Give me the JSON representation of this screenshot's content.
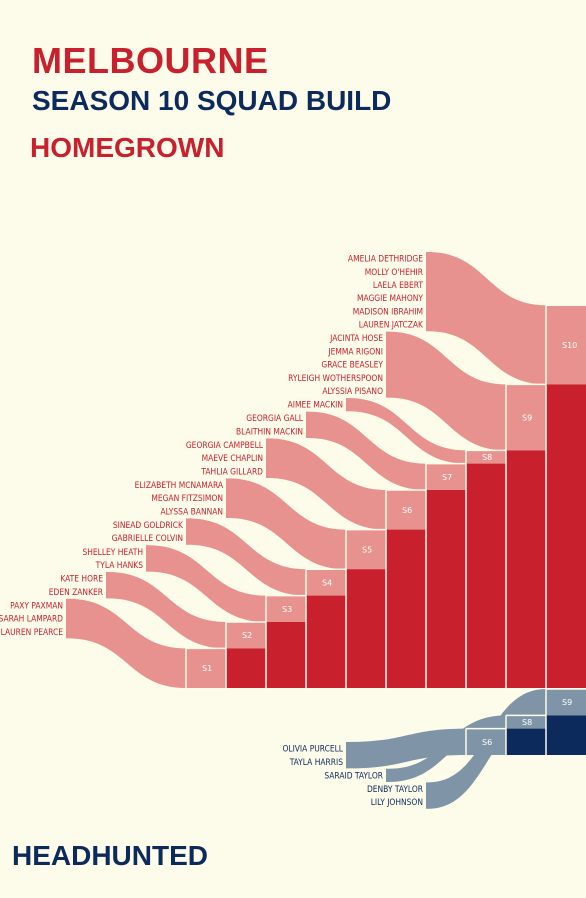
{
  "title": "MELBOURNE",
  "subtitle": "SEASON 10 SQUAD BUILD",
  "homegrown_heading": "HOMEGROWN",
  "headhunted_heading": "HEADHUNTED",
  "colors": {
    "background": "#fdfbe9",
    "homegrown_bar": "#c8202d",
    "homegrown_flow": "#e8928f",
    "homegrown_text": "#c8202d",
    "headhunted_bar": "#0c2a5c",
    "headhunted_flow": "#7f95a7",
    "headhunted_text": "#0c2a5c"
  },
  "homegrown": {
    "seasons": [
      "S1",
      "S2",
      "S3",
      "S4",
      "S5",
      "S6",
      "S7",
      "S8",
      "S9",
      "S10"
    ],
    "groups": [
      {
        "season": "S10",
        "players": [
          "AMELIA DETHRIDGE",
          "MOLLY O'HEHIR",
          "LAELA EBERT",
          "MAGGIE MAHONY",
          "MADISON IBRAHIM",
          "LAUREN JATCZAK"
        ]
      },
      {
        "season": "S9",
        "players": [
          "JACINTA HOSE",
          "JEMMA RIGONI",
          "GRACE BEASLEY",
          "RYLEIGH WOTHERSPOON",
          "ALYSSIA PISANO"
        ]
      },
      {
        "season": "S8",
        "players": [
          "AIMEE MACKIN"
        ]
      },
      {
        "season": "S7",
        "players": [
          "GEORGIA GALL",
          "BLAITHIN MACKIN"
        ]
      },
      {
        "season": "S6",
        "players": [
          "GEORGIA CAMPBELL",
          "MAEVE CHAPLIN",
          "TAHLIA GILLARD"
        ]
      },
      {
        "season": "S5",
        "players": [
          "ELIZABETH MCNAMARA",
          "MEGAN FITZSIMON",
          "ALYSSA BANNAN"
        ]
      },
      {
        "season": "S4",
        "players": [
          "SINEAD GOLDRICK",
          "GABRIELLE COLVIN"
        ]
      },
      {
        "season": "S3",
        "players": [
          "SHELLEY HEATH",
          "TYLA HANKS"
        ]
      },
      {
        "season": "S2",
        "players": [
          "KATE HORE",
          "EDEN ZANKER"
        ]
      },
      {
        "season": "S1",
        "players": [
          "PAXY PAXMAN",
          "SARAH LAMPARD",
          "LAUREN PEARCE"
        ]
      }
    ]
  },
  "headhunted": {
    "seasons": [
      "S6",
      "S8",
      "S9"
    ],
    "groups": [
      {
        "season": "S6",
        "players": [
          "OLIVIA PURCELL",
          "TAYLA HARRIS"
        ]
      },
      {
        "season": "S8",
        "players": [
          "SARAID TAYLOR"
        ]
      },
      {
        "season": "S9",
        "players": [
          "DENBY TAYLOR",
          "LILY JOHNSON"
        ]
      }
    ]
  }
}
